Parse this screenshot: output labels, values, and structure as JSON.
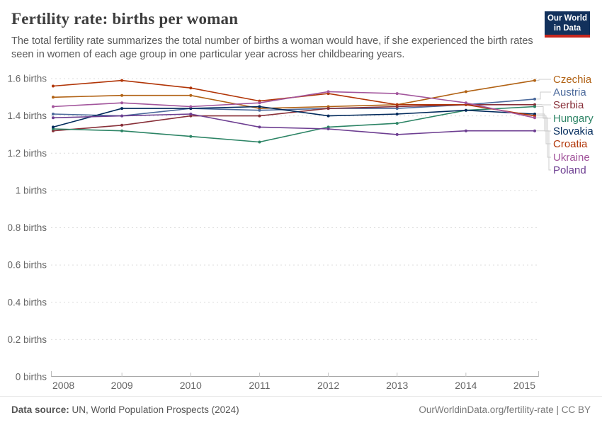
{
  "header": {
    "title": "Fertility rate: births per woman",
    "subtitle": "The total fertility rate summarizes the total number of births a woman would have, if she experienced the birth rates seen in women of each age group in one particular year across her childbearing years.",
    "logo": {
      "line1": "Our World",
      "line2": "in Data",
      "bg_color": "#12315C",
      "accent_color": "#C7261D"
    }
  },
  "chart_data": {
    "type": "line",
    "x": [
      2008,
      2009,
      2010,
      2011,
      2012,
      2013,
      2014,
      2015
    ],
    "series": [
      {
        "name": "Czechia",
        "color": "#B16214",
        "values": [
          1.5,
          1.51,
          1.51,
          1.44,
          1.45,
          1.46,
          1.53,
          1.59
        ]
      },
      {
        "name": "Austria",
        "color": "#4C6A9C",
        "values": [
          1.41,
          1.4,
          1.44,
          1.43,
          1.44,
          1.44,
          1.46,
          1.49
        ]
      },
      {
        "name": "Serbia",
        "color": "#883039",
        "values": [
          1.32,
          1.35,
          1.4,
          1.4,
          1.44,
          1.45,
          1.46,
          1.46
        ]
      },
      {
        "name": "Hungary",
        "color": "#2C8465",
        "values": [
          1.33,
          1.32,
          1.29,
          1.26,
          1.34,
          1.36,
          1.43,
          1.45
        ]
      },
      {
        "name": "Slovakia",
        "color": "#00295B",
        "values": [
          1.34,
          1.44,
          1.44,
          1.45,
          1.4,
          1.41,
          1.43,
          1.41
        ]
      },
      {
        "name": "Croatia",
        "color": "#B13507",
        "values": [
          1.56,
          1.59,
          1.55,
          1.48,
          1.52,
          1.46,
          1.46,
          1.4
        ]
      },
      {
        "name": "Ukraine",
        "color": "#A2559C",
        "values": [
          1.45,
          1.47,
          1.45,
          1.47,
          1.53,
          1.52,
          1.47,
          1.39
        ]
      },
      {
        "name": "Poland",
        "color": "#6D3E91",
        "values": [
          1.39,
          1.4,
          1.41,
          1.34,
          1.33,
          1.3,
          1.32,
          1.32
        ]
      }
    ],
    "title": "Fertility rate: births per woman",
    "ylabel": "births",
    "ytick_suffix": " births",
    "yticks": [
      0,
      0.2,
      0.4,
      0.6,
      0.8,
      1,
      1.2,
      1.4,
      1.6
    ],
    "ylim": [
      0,
      1.6
    ],
    "grid": "horizontal-dashed",
    "legend_position": "right"
  },
  "footer": {
    "source_label": "Data source:",
    "source_text": " UN, World Population Prospects (2024)",
    "link_text": "OurWorldinData.org/fertility-rate | CC BY"
  }
}
